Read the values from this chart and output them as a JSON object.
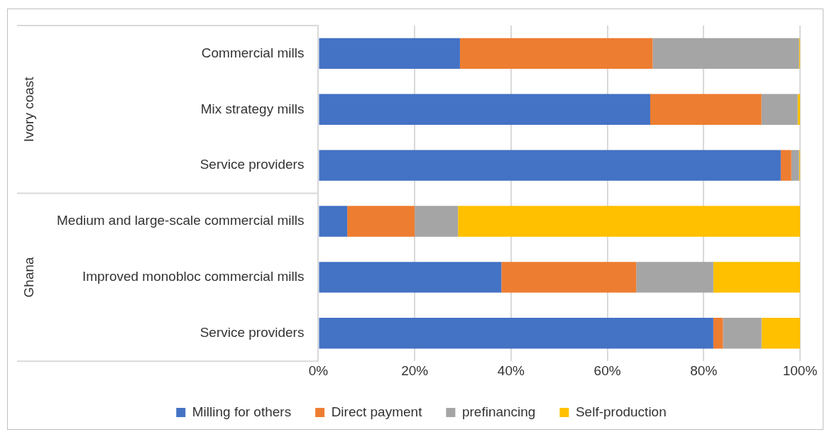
{
  "chart_data": {
    "type": "bar",
    "orientation": "horizontal",
    "stacked": true,
    "categories": [
      "Commercial mills",
      "Mix strategy mills",
      "Service providers",
      "Medium and large-scale commercial mills",
      "Improved monobloc commercial mills",
      "Service providers"
    ],
    "series": [
      {
        "name": "Milling for others",
        "color": "#4472c4",
        "values": [
          29.4,
          68.9,
          96,
          6,
          38,
          82
        ]
      },
      {
        "name": "Direct payment",
        "color": "#ed7d31",
        "values": [
          40,
          23.1,
          2.2,
          14,
          28,
          2
        ]
      },
      {
        "name": "prefinancing",
        "color": "#a5a5a5",
        "values": [
          30.4,
          7.5,
          1.6,
          9,
          16,
          8
        ]
      },
      {
        "name": "Self-production",
        "color": "#ffc000",
        "values": [
          0.2,
          0.5,
          0.2,
          71,
          18,
          8
        ]
      }
    ],
    "xlim": [
      0,
      100
    ],
    "xticks": [
      {
        "value": 0,
        "label": "0%"
      },
      {
        "value": 20,
        "label": "20%"
      },
      {
        "value": 40,
        "label": "40%"
      },
      {
        "value": 60,
        "label": "60%"
      },
      {
        "value": 80,
        "label": "80%"
      },
      {
        "value": 100,
        "label": "100%"
      }
    ],
    "annotations": [
      "Ivory coast",
      "Ghana"
    ],
    "grid": "x",
    "legend": "bottom"
  }
}
